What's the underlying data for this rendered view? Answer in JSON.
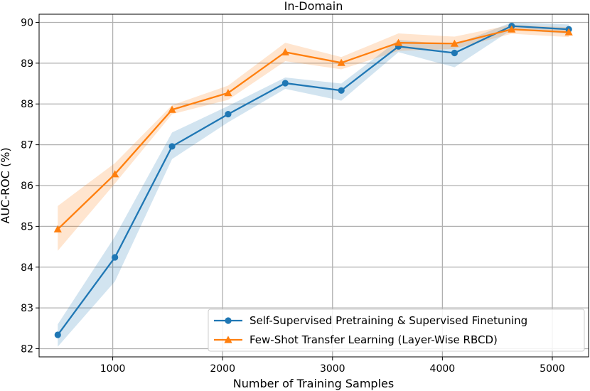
{
  "chart_data": {
    "type": "line",
    "title": "In-Domain",
    "xlabel": "Number of Training Samples",
    "ylabel": "AUC-ROC (%)",
    "xlim": [
      330,
      5330
    ],
    "ylim": [
      81.8,
      90.2
    ],
    "xticks": [
      1000,
      2000,
      3000,
      4000,
      5000
    ],
    "yticks": [
      82,
      83,
      84,
      85,
      86,
      87,
      88,
      89,
      90
    ],
    "grid": true,
    "legend_position": "lower-right",
    "x": [
      500,
      1020,
      1540,
      2050,
      2570,
      3080,
      3600,
      4110,
      4630,
      5150
    ],
    "series": [
      {
        "name": "Self-Supervised Pretraining & Supervised Finetuning",
        "color": "#1f77b4",
        "marker": "circle",
        "values": [
          82.34,
          84.24,
          86.96,
          87.75,
          88.51,
          88.33,
          89.41,
          89.25,
          89.91,
          89.83
        ],
        "lower": [
          82.05,
          83.65,
          86.65,
          87.55,
          88.37,
          88.08,
          89.27,
          88.9,
          89.82,
          89.72
        ],
        "upper": [
          82.6,
          84.75,
          87.3,
          87.95,
          88.65,
          88.5,
          89.57,
          89.45,
          90.0,
          89.95
        ]
      },
      {
        "name": "Few-Shot Transfer Learning (Layer-Wise RBCD)",
        "color": "#ff7f0e",
        "marker": "triangle",
        "values": [
          84.93,
          86.28,
          87.86,
          88.27,
          89.27,
          89.01,
          89.5,
          89.48,
          89.83,
          89.76
        ],
        "lower": [
          84.4,
          86.05,
          87.75,
          88.1,
          89.05,
          88.85,
          89.3,
          89.35,
          89.72,
          89.64
        ],
        "upper": [
          85.5,
          86.55,
          87.97,
          88.45,
          89.5,
          89.15,
          89.73,
          89.65,
          89.94,
          89.88
        ]
      }
    ]
  }
}
